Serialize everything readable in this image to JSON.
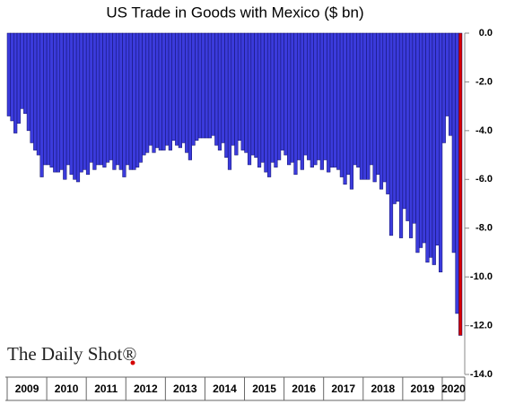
{
  "chart_data": {
    "type": "bar",
    "title": "US Trade in Goods with Mexico ($ bn)",
    "source": "The Daily Shot®",
    "color": "#3b3bdc",
    "highlight": {
      "index": 137,
      "color": "#d40000"
    },
    "categories": [
      "2009",
      null,
      null,
      null,
      null,
      null,
      null,
      null,
      null,
      null,
      null,
      null,
      "2010",
      null,
      null,
      null,
      null,
      null,
      null,
      null,
      null,
      null,
      null,
      null,
      "2011",
      null,
      null,
      null,
      null,
      null,
      null,
      null,
      null,
      null,
      null,
      null,
      "2012",
      null,
      null,
      null,
      null,
      null,
      null,
      null,
      null,
      null,
      null,
      null,
      "2013",
      null,
      null,
      null,
      null,
      null,
      null,
      null,
      null,
      null,
      null,
      null,
      "2014",
      null,
      null,
      null,
      null,
      null,
      null,
      null,
      null,
      null,
      null,
      null,
      "2015",
      null,
      null,
      null,
      null,
      null,
      null,
      null,
      null,
      null,
      null,
      null,
      "2016",
      null,
      null,
      null,
      null,
      null,
      null,
      null,
      null,
      null,
      null,
      null,
      "2017",
      null,
      null,
      null,
      null,
      null,
      null,
      null,
      null,
      null,
      null,
      null,
      "2018",
      null,
      null,
      null,
      null,
      null,
      null,
      null,
      null,
      null,
      null,
      null,
      "2019",
      null,
      null,
      null,
      null,
      null,
      null,
      null,
      null,
      null,
      null,
      null,
      "2020",
      null,
      null,
      null,
      null,
      null
    ],
    "values": [
      -3.4,
      -3.6,
      -4.1,
      -3.7,
      -3.1,
      -3.3,
      -4.0,
      -4.5,
      -4.8,
      -5.0,
      -5.9,
      -5.4,
      -5.4,
      -5.5,
      -5.7,
      -5.7,
      -5.6,
      -6.0,
      -5.4,
      -5.8,
      -6.0,
      -6.1,
      -5.7,
      -5.6,
      -5.8,
      -5.3,
      -5.6,
      -5.4,
      -5.4,
      -5.5,
      -5.3,
      -5.2,
      -5.6,
      -5.4,
      -5.6,
      -5.9,
      -5.4,
      -5.6,
      -5.6,
      -5.5,
      -5.3,
      -5.0,
      -4.9,
      -4.6,
      -4.9,
      -4.7,
      -4.8,
      -4.8,
      -4.6,
      -4.8,
      -4.4,
      -4.6,
      -4.7,
      -4.5,
      -4.9,
      -5.2,
      -4.6,
      -4.4,
      -4.3,
      -4.3,
      -4.3,
      -4.3,
      -4.2,
      -4.6,
      -4.8,
      -4.5,
      -5.1,
      -5.6,
      -4.6,
      -5.0,
      -4.4,
      -4.8,
      -4.9,
      -5.4,
      -5.0,
      -5.1,
      -5.5,
      -5.3,
      -5.7,
      -5.9,
      -5.3,
      -5.5,
      -5.2,
      -4.8,
      -5.0,
      -5.4,
      -5.3,
      -5.8,
      -5.2,
      -5.6,
      -5.0,
      -5.2,
      -5.5,
      -5.4,
      -5.2,
      -5.6,
      -5.2,
      -5.7,
      -5.5,
      -5.5,
      -5.6,
      -5.9,
      -6.2,
      -5.8,
      -6.4,
      -5.4,
      -5.5,
      -6.0,
      -6.0,
      -6.0,
      -5.4,
      -6.1,
      -5.8,
      -6.4,
      -6.1,
      -6.6,
      -8.3,
      -7.0,
      -6.9,
      -8.4,
      -7.2,
      -7.7,
      -8.4,
      -7.8,
      -9.0,
      -8.8,
      -8.6,
      -9.4,
      -9.2,
      -9.5,
      -8.7,
      -9.8,
      -4.5,
      -3.4,
      -4.2,
      -9.0,
      -11.5,
      -12.4
    ],
    "ylim": [
      -14,
      0
    ],
    "yticks": [
      {
        "value": 0,
        "label": "0.0"
      },
      {
        "value": -2,
        "label": "-2.0"
      },
      {
        "value": -4,
        "label": "-4.0"
      },
      {
        "value": -6,
        "label": "-6.0"
      },
      {
        "value": -8,
        "label": "-8.0"
      },
      {
        "value": -10,
        "label": "-10.0"
      },
      {
        "value": -12,
        "label": "-12.0"
      },
      {
        "value": -14,
        "label": "-14.0"
      }
    ]
  }
}
